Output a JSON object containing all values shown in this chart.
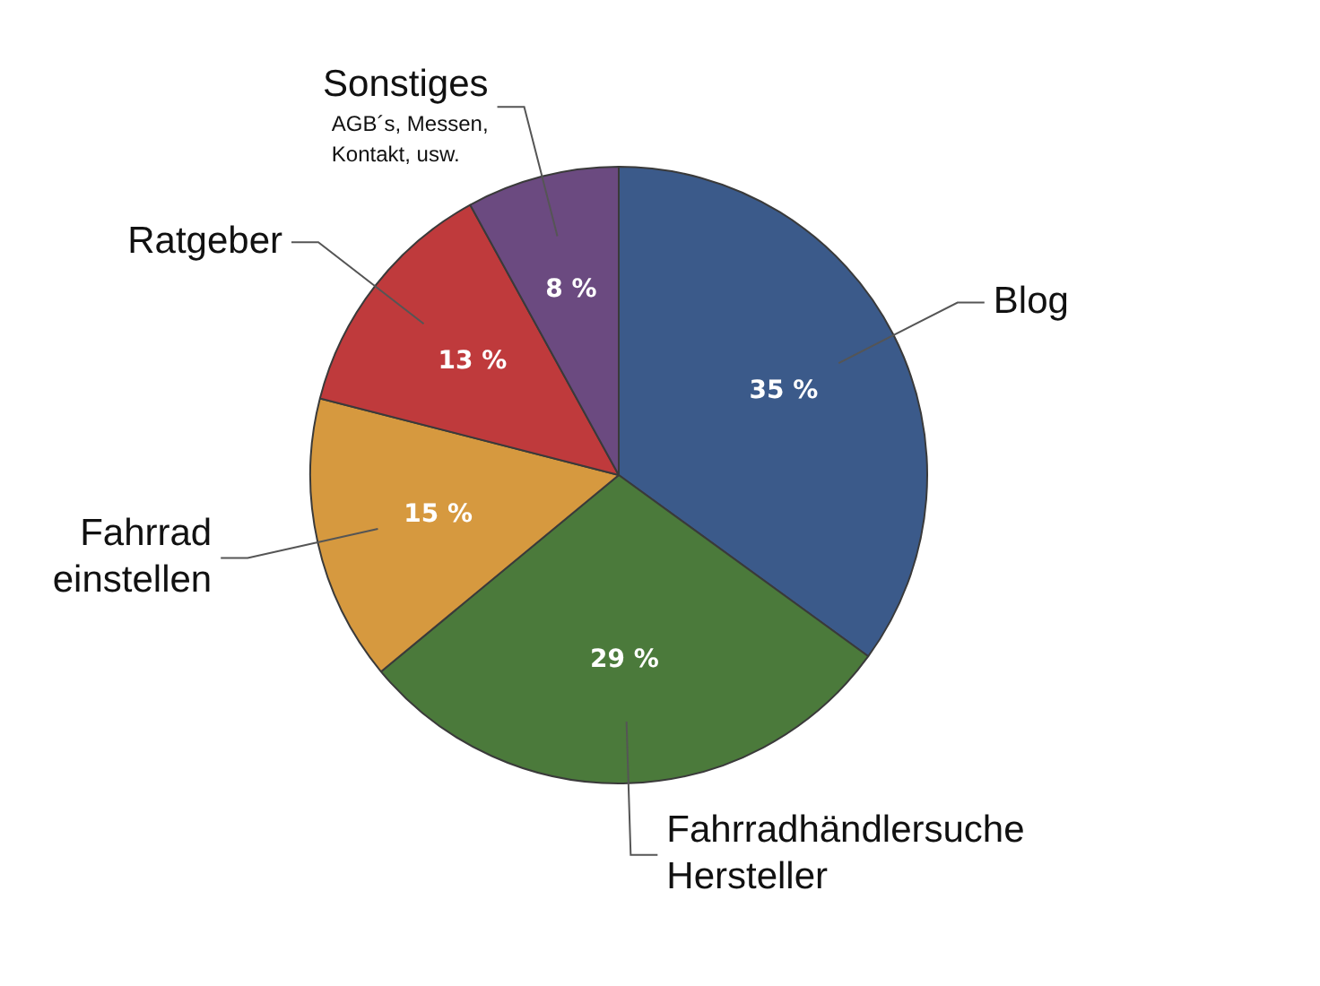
{
  "chart_data": {
    "type": "pie",
    "categories": [
      "Blog",
      "Fahrradhändlersuche Hersteller",
      "Fahrrad einstellen",
      "Ratgeber",
      "Sonstiges"
    ],
    "values": [
      35,
      29,
      15,
      13,
      8
    ],
    "colors": [
      "#3b5a8a",
      "#4b7a3b",
      "#d6993f",
      "#bf3a3c",
      "#6b4a80"
    ],
    "value_labels": [
      "35 %",
      "29 %",
      "15 %",
      "13 %",
      "8 %"
    ],
    "legend": false,
    "annotations": [
      {
        "text": "AGB´s, Messen, Kontakt, usw.",
        "x": "Sonstiges"
      }
    ]
  }
}
